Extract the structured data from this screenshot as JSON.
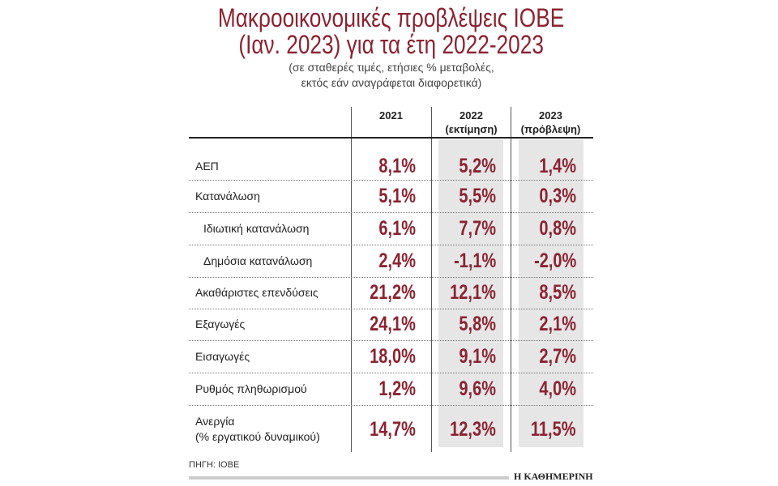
{
  "title_lines": [
    "Μακροοικονομικές προβλέψεις ΙΟΒΕ",
    "(Ιαν. 2023) για τα έτη 2022-2023"
  ],
  "subtitle_lines": [
    "(σε σταθερές τιμές, ετήσιες % μεταβολές,",
    "εκτός εάν αναγράφεται διαφορετικά)"
  ],
  "colors": {
    "accent": "#8b2331",
    "shade": "#e6e6e6"
  },
  "chart_data": {
    "type": "table",
    "columns": [
      {
        "year": "2021",
        "note": ""
      },
      {
        "year": "2022",
        "note": "(εκτίμηση)"
      },
      {
        "year": "2023",
        "note": "(πρόβλεψη)"
      }
    ],
    "rows": [
      {
        "label": "ΑΕΠ",
        "label2": "",
        "indent": false,
        "values": [
          "8,1%",
          "5,2%",
          "1,4%"
        ]
      },
      {
        "label": "Κατανάλωση",
        "label2": "",
        "indent": false,
        "values": [
          "5,1%",
          "5,5%",
          "0,3%"
        ]
      },
      {
        "label": "Ιδιωτική κατανάλωση",
        "label2": "",
        "indent": true,
        "values": [
          "6,1%",
          "7,7%",
          "0,8%"
        ]
      },
      {
        "label": "Δημόσια κατανάλωση",
        "label2": "",
        "indent": true,
        "values": [
          "2,4%",
          "-1,1%",
          "-2,0%"
        ]
      },
      {
        "label": "Ακαθάριστες επενδύσεις",
        "label2": "",
        "indent": false,
        "values": [
          "21,2%",
          "12,1%",
          "8,5%"
        ]
      },
      {
        "label": "Εξαγωγές",
        "label2": "",
        "indent": false,
        "values": [
          "24,1%",
          "5,8%",
          "2,1%"
        ]
      },
      {
        "label": "Εισαγωγές",
        "label2": "",
        "indent": false,
        "values": [
          "18,0%",
          "9,1%",
          "2,7%"
        ]
      },
      {
        "label": "Ρυθμός πληθωρισμού",
        "label2": "",
        "indent": false,
        "values": [
          "1,2%",
          "9,6%",
          "4,0%"
        ]
      },
      {
        "label": "Ανεργία",
        "label2": "(% εργατικού δυναμικού)",
        "indent": false,
        "values": [
          "14,7%",
          "12,3%",
          "11,5%"
        ]
      }
    ]
  },
  "source": "ΠΗΓΗ: ΙΟΒΕ",
  "brand": "Η ΚΑΘΗΜΕΡΙΝΗ"
}
